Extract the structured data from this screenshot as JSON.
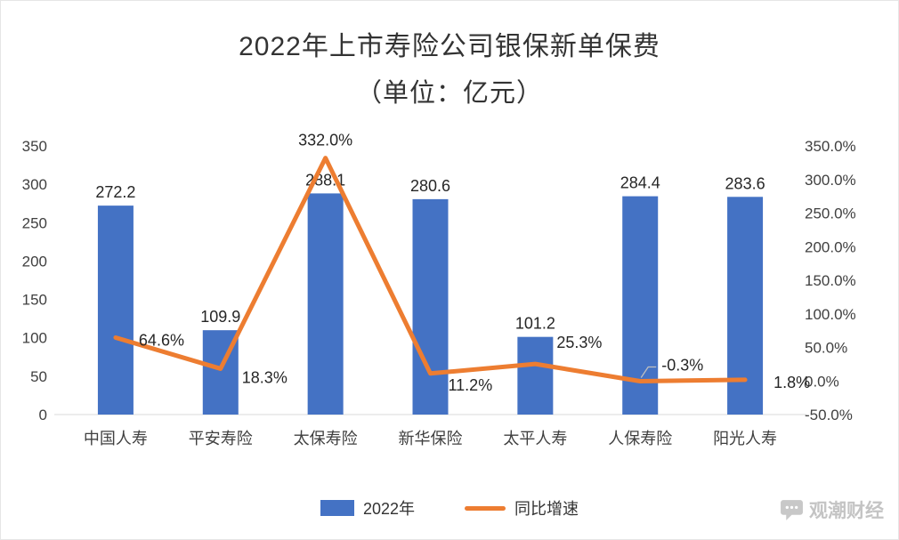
{
  "title": "2022年上市寿险公司银保新单保费",
  "subtitle": "（单位：亿元）",
  "watermark": "观潮财经",
  "legend": {
    "bar_label": "2022年",
    "line_label": "同比增速"
  },
  "colors": {
    "bar": "#4472C4",
    "line": "#ED7D31",
    "axis_text": "#404040",
    "label_text": "#262626"
  },
  "chart_data": {
    "type": "bar",
    "combo": "bar+line",
    "title": "2022年上市寿险公司银保新单保费（单位：亿元）",
    "categories": [
      "中国人寿",
      "平安寿险",
      "太保寿险",
      "新华保险",
      "太平人寿",
      "人保寿险",
      "阳光人寿"
    ],
    "series": [
      {
        "name": "2022年",
        "type": "bar",
        "axis": "left",
        "unit": "亿元",
        "values": [
          272.2,
          109.9,
          288.1,
          280.6,
          101.2,
          284.4,
          283.6
        ]
      },
      {
        "name": "同比增速",
        "type": "line",
        "axis": "right",
        "unit": "%",
        "values": [
          64.6,
          18.3,
          332.0,
          11.2,
          25.3,
          -0.3,
          1.8
        ]
      }
    ],
    "left_axis": {
      "min": 0,
      "max": 350,
      "step": 50,
      "ticks": [
        "0",
        "50",
        "100",
        "150",
        "200",
        "250",
        "300",
        "350"
      ]
    },
    "right_axis": {
      "min": -50,
      "max": 350,
      "step": 50,
      "ticks": [
        "-50.0%",
        "0.0%",
        "50.0%",
        "100.0%",
        "150.0%",
        "200.0%",
        "250.0%",
        "300.0%",
        "350.0%"
      ]
    },
    "grid": false,
    "legend_position": "bottom"
  }
}
